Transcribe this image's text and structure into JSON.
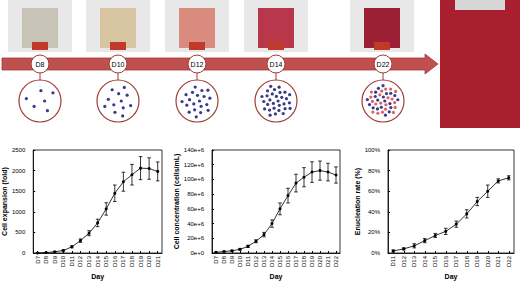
{
  "timeline": [
    "D8",
    "D10",
    "D12",
    "D14",
    "D22"
  ],
  "chart_data": [
    {
      "type": "line",
      "y_label": "Cell expansion (fold)",
      "x_label": "Day",
      "categories": [
        "D7",
        "D8",
        "D9",
        "D10",
        "D11",
        "D12",
        "D13",
        "D14",
        "D15",
        "D16",
        "D17",
        "D18",
        "D19",
        "D20",
        "D21"
      ],
      "values": [
        1,
        10,
        30,
        60,
        150,
        300,
        480,
        730,
        1070,
        1450,
        1730,
        1900,
        2060,
        2050,
        1980
      ],
      "errors": [
        1,
        3,
        8,
        15,
        25,
        40,
        60,
        90,
        150,
        200,
        230,
        250,
        280,
        260,
        230
      ],
      "ylim": [
        0,
        2500
      ],
      "yticks": [
        0,
        500,
        1000,
        1500,
        2000,
        2500
      ],
      "color": "#000000",
      "marker": "circle",
      "grid": false
    },
    {
      "type": "line",
      "y_label": "Cell concentration (cells/mL)",
      "x_label": "Day",
      "categories": [
        "D7",
        "D8",
        "D9",
        "D10",
        "D11",
        "D12",
        "D13",
        "D14",
        "D15",
        "D16",
        "D17",
        "D18",
        "D19",
        "D20",
        "D21",
        "D22"
      ],
      "values": [
        1000000,
        2000000,
        3000000,
        5000000,
        9000000,
        16000000,
        25000000,
        40000000,
        60000000,
        78000000,
        95000000,
        103000000,
        110000000,
        112000000,
        110000000,
        106000000
      ],
      "errors": [
        200000,
        500000,
        800000,
        1200000,
        1500000,
        2000000,
        3000000,
        5000000,
        8000000,
        10000000,
        12000000,
        13000000,
        14000000,
        13000000,
        12000000,
        11000000
      ],
      "ylim": [
        0,
        140000000
      ],
      "yticks": [
        {
          "value": 0,
          "label": "0e+0"
        },
        {
          "value": 20000000,
          "label": "20e+6"
        },
        {
          "value": 40000000,
          "label": "40e+6"
        },
        {
          "value": 60000000,
          "label": "60e+6"
        },
        {
          "value": 80000000,
          "label": "80e+6"
        },
        {
          "value": 100000000,
          "label": "100e+6"
        },
        {
          "value": 120000000,
          "label": "120e+6"
        },
        {
          "value": 140000000,
          "label": "140e+6"
        }
      ],
      "color": "#000000",
      "marker": "circle",
      "grid": false
    },
    {
      "type": "line",
      "y_label": "Enucleation rate (%)",
      "x_label": "Day",
      "categories": [
        "D11",
        "D12",
        "D13",
        "D14",
        "D15",
        "D16",
        "D17",
        "D18",
        "D19",
        "D20",
        "D21",
        "D22"
      ],
      "values": [
        2,
        4,
        7,
        12,
        17,
        21,
        28,
        38,
        50,
        60,
        70,
        73
      ],
      "errors": [
        1,
        1,
        2,
        2,
        2,
        3,
        3,
        4,
        4,
        6,
        2,
        2
      ],
      "ylim": [
        0,
        100
      ],
      "yticks": [
        {
          "value": 0,
          "label": "0%"
        },
        {
          "value": 20,
          "label": "20%"
        },
        {
          "value": 40,
          "label": "40%"
        },
        {
          "value": 60,
          "label": "60%"
        },
        {
          "value": 80,
          "label": "80%"
        },
        {
          "value": 100,
          "label": "100%"
        }
      ],
      "color": "#000000",
      "marker": "circle",
      "grid": false
    }
  ]
}
